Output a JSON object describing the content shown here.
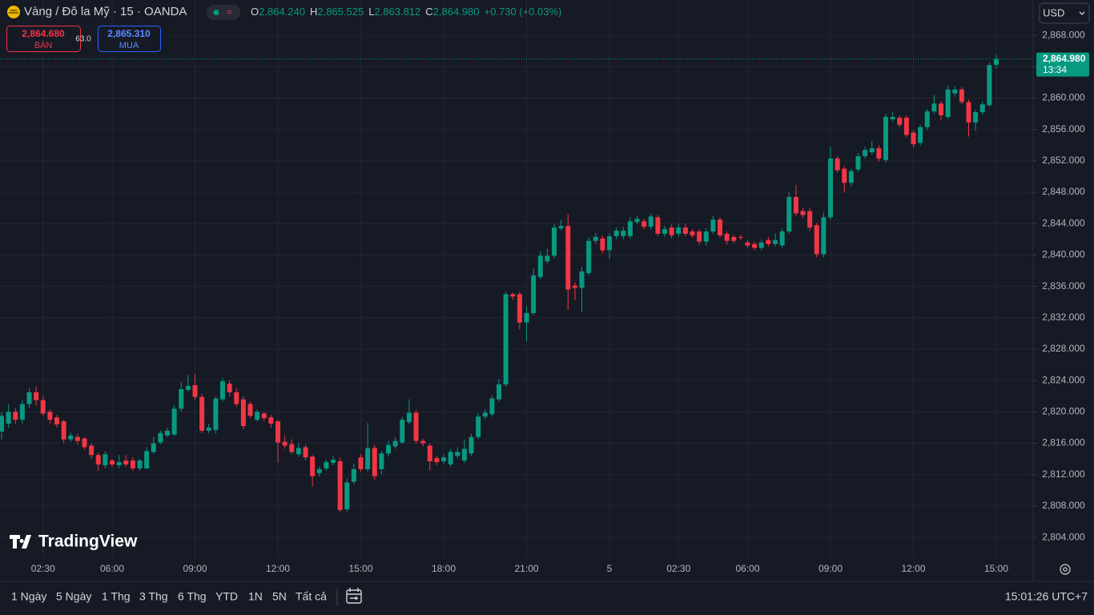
{
  "header": {
    "symbol": "Vàng / Đô la Mỹ · 15 · OANDA",
    "ohlc": [
      {
        "key": "O",
        "value": "2,864.240"
      },
      {
        "key": "H",
        "value": "2,865.525"
      },
      {
        "key": "L",
        "value": "2,863.812"
      },
      {
        "key": "C",
        "value": "2,864.980"
      }
    ],
    "change": "+0.730 (+0.03%)"
  },
  "trade": {
    "sell_price": "2,864.680",
    "sell_label": "BÁN",
    "spread": "63.0",
    "buy_price": "2,865.310",
    "buy_label": "MUA"
  },
  "currency": "USD",
  "logo": "TradingView",
  "ranges": [
    "1 Ngày",
    "5 Ngày",
    "1 Thg",
    "3 Thg",
    "6 Thg",
    "YTD",
    "1N",
    "5N",
    "Tất cả"
  ],
  "clock": "15:01:26 UTC+7",
  "chart_data": {
    "type": "candlestick",
    "categories": [
      null,
      null,
      null,
      null,
      null,
      null,
      "02:30",
      null,
      null,
      null,
      null,
      null,
      null,
      null,
      null,
      null,
      "06:00",
      null,
      null,
      null,
      null,
      null,
      null,
      null,
      null,
      null,
      null,
      null,
      "09:00",
      null,
      null,
      null,
      null,
      null,
      null,
      null,
      null,
      null,
      null,
      null,
      "12:00",
      null,
      null,
      null,
      null,
      null,
      null,
      null,
      null,
      null,
      null,
      null,
      "15:00",
      null,
      null,
      null,
      null,
      null,
      null,
      null,
      null,
      null,
      null,
      null,
      "18:00",
      null,
      null,
      null,
      null,
      null,
      null,
      null,
      null,
      null,
      null,
      null,
      "21:00",
      null,
      null,
      null,
      null,
      null,
      null,
      null,
      null,
      null,
      null,
      null,
      "5",
      null,
      null,
      null,
      null,
      null,
      null,
      null,
      null,
      null,
      "02:30",
      null,
      null,
      null,
      null,
      null,
      null,
      null,
      null,
      null,
      "06:00",
      null,
      null,
      null,
      null,
      null,
      null,
      null,
      null,
      null,
      null,
      null,
      "09:00",
      null,
      null,
      null,
      null,
      null,
      null,
      null,
      null,
      null,
      null,
      null,
      "12:00",
      null,
      null,
      null,
      null,
      null,
      null,
      null,
      null,
      null,
      null,
      null,
      "15:00"
    ],
    "open": [
      2817.5,
      2818.5,
      2820,
      2819,
      2821,
      2822.5,
      2821.5,
      2820,
      2819.3,
      2818.8,
      2816.5,
      2816.8,
      2816.6,
      2815.7,
      2814.5,
      2813.2,
      2813.8,
      2813.2,
      2813.8,
      2813.8,
      2812.8,
      2812.8,
      2814.9,
      2816.1,
      2817,
      2817.1,
      2820.4,
      2822.8,
      2823.4,
      2821.9,
      2817.6,
      2817.7,
      2821.6,
      2823.6,
      2822.5,
      2821.6,
      2821,
      2819,
      2819.8,
      2819.3,
      2818.8,
      2816.2,
      2815.9,
      2814.6,
      2815.5,
      2814.3,
      2812.2,
      2812.8,
      2813.5,
      2813.7,
      2807.6,
      2811.1,
      2814.2,
      2812.7,
      2815.4,
      2812.7,
      2814.7,
      2815.6,
      2816.1,
      2818.7,
      2819.9,
      2816.3,
      2815.7,
      2814.1,
      2813.7,
      2813.3,
      2814.4,
      2813.8,
      2814.7,
      2816.8,
      2819.4,
      2819.7,
      2821.6,
      2823.5,
      2835,
      2835,
      2831.4,
      2832.6,
      2837.2,
      2839.2,
      2839.9,
      2843.4,
      2843.7,
      2836.1,
      2835.8,
      2837.7,
      2841.8,
      2842.1,
      2840.6,
      2842.4,
      2842.4,
      2842.4,
      2844.2,
      2844.3,
      2843.6,
      2844.8,
      2842.7,
      2843.5,
      2842.7,
      2843.5,
      2843,
      2843,
      2841.7,
      2843,
      2844.5,
      2842.7,
      2842.3,
      2842.3,
      2841.6,
      2841.4,
      2840.9,
      2841.9,
      2841.4,
      2841.2,
      2843,
      2847.4,
      2845.6,
      2845.6,
      2843.8,
      2840.1,
      2844.8,
      2852.3,
      2851,
      2849.2,
      2850.9,
      2852.6,
      2853.1,
      2853.6,
      2852.1,
      2857.3,
      2857.5,
      2857.5,
      2855.6,
      2854.3,
      2856.3,
      2858.3,
      2859.3,
      2857.6,
      2860.6,
      2861.1,
      2859.5,
      2856.9,
      2858.2,
      2859.1,
      2864.24
    ],
    "high": [
      2820,
      2821,
      2820.5,
      2821.5,
      2823,
      2823.3,
      2822,
      2820.3,
      2819.6,
      2819,
      2817.4,
      2817.2,
      2816.8,
      2816,
      2814.8,
      2815,
      2814,
      2814.5,
      2814.5,
      2814.2,
      2814,
      2815.5,
      2816.8,
      2817.6,
      2818,
      2820.8,
      2823.8,
      2824.7,
      2824.8,
      2822.3,
      2818.5,
      2822,
      2824.3,
      2824,
      2823,
      2822,
      2821.3,
      2820.3,
      2820,
      2819.6,
      2819,
      2817,
      2816.5,
      2816,
      2815.8,
      2814.5,
      2813,
      2813.9,
      2814.4,
      2814.2,
      2811.5,
      2813.4,
      2814.6,
      2818.6,
      2815.8,
      2815,
      2816.3,
      2816.8,
      2819.4,
      2821.6,
      2820.2,
      2816.6,
      2816,
      2814.4,
      2814.6,
      2815.3,
      2815.5,
      2816.5,
      2817.2,
      2819.8,
      2820.3,
      2822.1,
      2824.2,
      2835.3,
      2835.2,
      2835.3,
      2833.5,
      2838.3,
      2840.5,
      2840.8,
      2844,
      2844.5,
      2845.2,
      2836.5,
      2838.5,
      2842.2,
      2842.8,
      2842.5,
      2842.8,
      2843.5,
      2843.6,
      2844.8,
      2845,
      2844.6,
      2845.3,
      2845.1,
      2843.7,
      2843.9,
      2844,
      2844,
      2843.3,
      2843.3,
      2843.4,
      2845,
      2844.8,
      2843,
      2842.6,
      2842.6,
      2841.9,
      2841.7,
      2842,
      2842.3,
      2842.8,
      2843.4,
      2848,
      2848.9,
      2846,
      2846,
      2844.1,
      2845.4,
      2853.8,
      2852.6,
      2851.3,
      2851,
      2853,
      2853.8,
      2854.5,
      2854,
      2858,
      2858.2,
      2857.8,
      2857.8,
      2855.9,
      2856.6,
      2858.6,
      2860.4,
      2859.6,
      2861.6,
      2861.5,
      2861.4,
      2859.8,
      2858.5,
      2859.6,
      2864.5,
      2865.525
    ],
    "low": [
      2816.5,
      2818,
      2818.5,
      2818.5,
      2820.5,
      2820.8,
      2819.5,
      2818.5,
      2818,
      2816,
      2816.2,
      2815.8,
      2815.2,
      2814,
      2812.5,
      2812.8,
      2813,
      2812.8,
      2813,
      2812.5,
      2812.5,
      2812.7,
      2814.6,
      2815.9,
      2816.8,
      2817,
      2820,
      2822.6,
      2821.5,
      2817.3,
      2817.3,
      2817.2,
      2821.3,
      2822,
      2820.7,
      2817.8,
      2819.2,
      2818.8,
      2818.8,
      2818,
      2813.5,
      2815.3,
      2814.6,
      2814.3,
      2813.8,
      2810.5,
      2811.8,
      2812.5,
      2813.2,
      2807.3,
      2807.3,
      2810.8,
      2812.4,
      2812.4,
      2811.3,
      2812,
      2814.3,
      2815.3,
      2815.9,
      2818.4,
      2816,
      2815.6,
      2812.5,
      2813.2,
      2813.3,
      2813,
      2814.1,
      2813.5,
      2814.4,
      2816.5,
      2819.1,
      2819.4,
      2821.3,
      2823.2,
      2834.3,
      2830.5,
      2829,
      2832.3,
      2836.9,
      2838.9,
      2839.6,
      2843.1,
      2833,
      2834.3,
      2832.8,
      2837.4,
      2841.4,
      2840.2,
      2839.5,
      2842,
      2842,
      2842.1,
      2843.9,
      2843.3,
      2843.2,
      2842.4,
      2842.3,
      2842.1,
      2842.3,
      2842.4,
      2842.2,
      2841.3,
      2841.2,
      2842.7,
      2842.2,
      2841.3,
      2841.5,
      2841.9,
      2840.9,
      2840.6,
      2840.6,
      2841.1,
      2841.1,
      2840.9,
      2842.7,
      2845,
      2844.7,
      2843.1,
      2839.7,
      2839.7,
      2844.5,
      2850.5,
      2848,
      2848.7,
      2850.6,
      2852.3,
      2852.8,
      2851.9,
      2851.8,
      2857,
      2856.3,
      2855,
      2853.7,
      2853.9,
      2856,
      2858,
      2857.2,
      2857.3,
      2860.2,
      2859.2,
      2855.1,
      2855.8,
      2857.9,
      2858.9,
      2863.812
    ],
    "close": [
      2819.5,
      2820,
      2819,
      2821,
      2822.5,
      2821.5,
      2819.8,
      2819,
      2818.4,
      2816.5,
      2817,
      2816.3,
      2815.5,
      2814.5,
      2813.3,
      2814.6,
      2813.3,
      2813.6,
      2813.3,
      2812.8,
      2813.8,
      2815,
      2816,
      2817.3,
      2817.6,
      2820.4,
      2822.9,
      2823.3,
      2821.9,
      2817.6,
      2818,
      2821.7,
      2823.9,
      2822.5,
      2821,
      2818.2,
      2819.5,
      2820,
      2819.2,
      2818.5,
      2816.1,
      2815.7,
      2814.9,
      2815.4,
      2814.2,
      2811.8,
      2812.7,
      2813.6,
      2813.9,
      2807.5,
      2811,
      2812.7,
      2812.7,
      2815.4,
      2811.8,
      2814.7,
      2815.8,
      2816.3,
      2819,
      2819.9,
      2816.3,
      2816,
      2813.7,
      2813.6,
      2814.2,
      2814.9,
      2814.9,
      2815.3,
      2816.8,
      2819.4,
      2819.9,
      2821.7,
      2823.5,
      2835,
      2834.7,
      2831.4,
      2832.6,
      2837.4,
      2839.9,
      2839.9,
      2843.5,
      2843.7,
      2835.6,
      2835.8,
      2837.9,
      2841.8,
      2842.3,
      2840.6,
      2842.4,
      2843.1,
      2843.1,
      2844.3,
      2844.6,
      2843.6,
      2844.9,
      2842.7,
      2843.3,
      2842.5,
      2843.5,
      2842.7,
      2842.5,
      2841.7,
      2843,
      2844.5,
      2842.5,
      2841.8,
      2841.8,
      2842.2,
      2841.2,
      2840.9,
      2841.6,
      2841.4,
      2841.9,
      2843,
      2847.4,
      2845.3,
      2845.1,
      2843.5,
      2840.1,
      2844.8,
      2852.3,
      2850.8,
      2849.2,
      2850.7,
      2852.6,
      2853.4,
      2853.6,
      2852.3,
      2857.6,
      2857.6,
      2856.6,
      2855.3,
      2854.1,
      2856.3,
      2858.3,
      2859.3,
      2857.8,
      2861.1,
      2861.1,
      2859.5,
      2856.9,
      2858.2,
      2859.2,
      2864.2,
      2864.98
    ],
    "up_color": "#089981",
    "down_color": "#f23645",
    "ylim": [
      2798.5,
      2872.5
    ],
    "yticks": [
      {
        "value": 2804,
        "label": "2,804.000"
      },
      {
        "value": 2808,
        "label": "2,808.000"
      },
      {
        "value": 2812,
        "label": "2,812.000"
      },
      {
        "value": 2816,
        "label": "2,816.000"
      },
      {
        "value": 2820,
        "label": "2,820.000"
      },
      {
        "value": 2824,
        "label": "2,824.000"
      },
      {
        "value": 2828,
        "label": "2,828.000"
      },
      {
        "value": 2832,
        "label": "2,832.000"
      },
      {
        "value": 2836,
        "label": "2,836.000"
      },
      {
        "value": 2840,
        "label": "2,840.000"
      },
      {
        "value": 2844,
        "label": "2,844.000"
      },
      {
        "value": 2848,
        "label": "2,848.000"
      },
      {
        "value": 2852,
        "label": "2,852.000"
      },
      {
        "value": 2856,
        "label": "2,856.000"
      },
      {
        "value": 2860,
        "label": "2,860.000"
      },
      {
        "value": 2864,
        "label": "2,864.000"
      },
      {
        "value": 2868,
        "label": "2,868.000"
      }
    ],
    "grid": true,
    "last_price_label": "2,864.980",
    "countdown": "13:34"
  }
}
